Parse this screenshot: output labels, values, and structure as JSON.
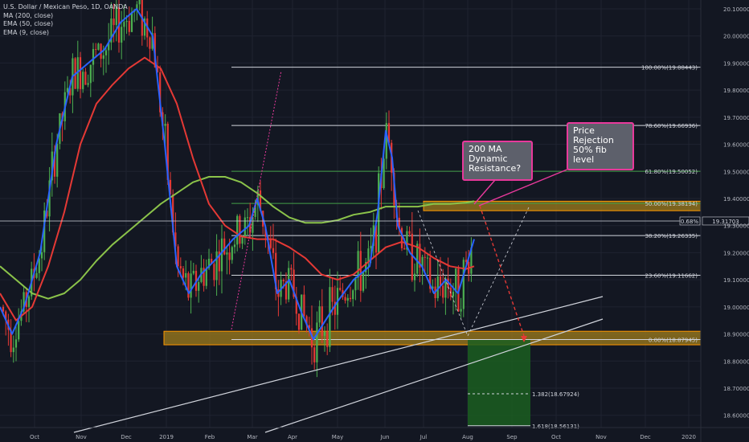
{
  "legend": {
    "title": "U.S. Dollar / Mexican Peso, 1D, OANDA",
    "ma200": "MA (200, close)",
    "ema50": "EMA (50, close)",
    "ema9": "EMA (9, close)"
  },
  "colors": {
    "background": "#131722",
    "bull": "#4caf50",
    "bear": "#e53935",
    "ma200": "#8bc34a",
    "ema50": "#e53935",
    "ema9": "#2962ff",
    "accent": "#e8399b",
    "zone": "#a07d1c"
  },
  "annotations": {
    "dynamic_resistance": "200 MA Dynamic Resistance?",
    "price_rejection": "Price Rejection 50% fib level"
  },
  "price_tag": {
    "change": "0.68%",
    "price": "19.31703"
  },
  "chart_data": {
    "type": "candlestick",
    "symbol": "USD/MXN",
    "ylim": [
      18.55,
      20.12
    ],
    "x_ticks": [
      "Oct",
      "Nov",
      "Dec",
      "2019",
      "Feb",
      "Mar",
      "Apr",
      "May",
      "Jun",
      "Jul",
      "Aug",
      "Sep",
      "Oct",
      "Nov",
      "Dec",
      "2020"
    ],
    "y_ticks": [
      "20.10000",
      "20.00000",
      "19.90000",
      "19.80000",
      "19.70000",
      "19.60000",
      "19.50000",
      "19.40000",
      "19.30000",
      "19.20000",
      "19.10000",
      "19.00000",
      "18.90000",
      "18.80000",
      "18.70000",
      "18.60000"
    ],
    "y_tick_values": [
      20.1,
      20.0,
      19.9,
      19.8,
      19.7,
      19.6,
      19.5,
      19.4,
      19.3,
      19.2,
      19.1,
      19.0,
      18.9,
      18.8,
      18.7,
      18.6
    ],
    "last_price": 19.31703,
    "fib_levels": [
      {
        "label": "100.00%(19.88443)",
        "value": 19.88443,
        "color": "#d1d4dc"
      },
      {
        "label": "78.60%(19.66936)",
        "value": 19.66936,
        "color": "#d1d4dc"
      },
      {
        "label": "61.80%(19.50052)",
        "value": 19.50052,
        "color": "#43a047"
      },
      {
        "label": "50.00%(19.38194)",
        "value": 19.38194,
        "color": "#43a047"
      },
      {
        "label": "38.20%(19.26335)",
        "value": 19.26335,
        "color": "#d1d4dc"
      },
      {
        "label": "23.60%(19.11662)",
        "value": 19.11662,
        "color": "#d1d4dc"
      },
      {
        "label": "0.00%(18.87945)",
        "value": 18.87945,
        "color": "#d1d4dc"
      }
    ],
    "target_levels": [
      {
        "label": "1.382(18.67924)",
        "value": 18.67924
      },
      {
        "label": "1.618(18.56131)",
        "value": 18.56131
      }
    ],
    "support_zone": [
      18.86,
      18.91
    ],
    "resistance_zone": [
      19.355,
      19.39
    ],
    "ma200": [
      [
        0,
        19.15
      ],
      [
        20,
        19.1
      ],
      [
        40,
        19.05
      ],
      [
        60,
        19.03
      ],
      [
        80,
        19.05
      ],
      [
        100,
        19.1
      ],
      [
        120,
        19.17
      ],
      [
        140,
        19.23
      ],
      [
        160,
        19.28
      ],
      [
        180,
        19.33
      ],
      [
        200,
        19.38
      ],
      [
        220,
        19.42
      ],
      [
        240,
        19.46
      ],
      [
        260,
        19.48
      ],
      [
        280,
        19.48
      ],
      [
        300,
        19.46
      ],
      [
        320,
        19.42
      ],
      [
        340,
        19.37
      ],
      [
        360,
        19.33
      ],
      [
        380,
        19.31
      ],
      [
        400,
        19.31
      ],
      [
        420,
        19.32
      ],
      [
        440,
        19.34
      ],
      [
        460,
        19.35
      ],
      [
        480,
        19.37
      ],
      [
        500,
        19.37
      ],
      [
        520,
        19.37
      ],
      [
        540,
        19.38
      ],
      [
        560,
        19.38
      ],
      [
        580,
        19.385
      ],
      [
        590,
        19.39
      ]
    ],
    "ema50": [
      [
        0,
        19.05
      ],
      [
        20,
        18.95
      ],
      [
        40,
        19.0
      ],
      [
        60,
        19.15
      ],
      [
        80,
        19.35
      ],
      [
        100,
        19.6
      ],
      [
        120,
        19.75
      ],
      [
        140,
        19.82
      ],
      [
        160,
        19.88
      ],
      [
        180,
        19.92
      ],
      [
        200,
        19.88
      ],
      [
        220,
        19.75
      ],
      [
        240,
        19.55
      ],
      [
        260,
        19.38
      ],
      [
        280,
        19.3
      ],
      [
        300,
        19.26
      ],
      [
        320,
        19.25
      ],
      [
        340,
        19.25
      ],
      [
        360,
        19.22
      ],
      [
        380,
        19.18
      ],
      [
        400,
        19.12
      ],
      [
        420,
        19.1
      ],
      [
        440,
        19.12
      ],
      [
        460,
        19.17
      ],
      [
        480,
        19.22
      ],
      [
        500,
        19.24
      ],
      [
        520,
        19.22
      ],
      [
        540,
        19.18
      ],
      [
        560,
        19.15
      ],
      [
        580,
        19.14
      ],
      [
        590,
        19.15
      ]
    ],
    "ema9": [
      [
        0,
        19.0
      ],
      [
        15,
        18.9
      ],
      [
        30,
        19.0
      ],
      [
        50,
        19.2
      ],
      [
        70,
        19.6
      ],
      [
        90,
        19.85
      ],
      [
        110,
        19.9
      ],
      [
        130,
        19.95
      ],
      [
        150,
        20.05
      ],
      [
        170,
        20.1
      ],
      [
        190,
        20.0
      ],
      [
        205,
        19.6
      ],
      [
        220,
        19.15
      ],
      [
        235,
        19.05
      ],
      [
        250,
        19.12
      ],
      [
        270,
        19.18
      ],
      [
        290,
        19.25
      ],
      [
        310,
        19.3
      ],
      [
        320,
        19.4
      ],
      [
        330,
        19.3
      ],
      [
        345,
        19.05
      ],
      [
        360,
        19.1
      ],
      [
        375,
        18.98
      ],
      [
        390,
        18.88
      ],
      [
        405,
        18.95
      ],
      [
        420,
        19.02
      ],
      [
        440,
        19.1
      ],
      [
        460,
        19.15
      ],
      [
        470,
        19.35
      ],
      [
        480,
        19.65
      ],
      [
        488,
        19.55
      ],
      [
        495,
        19.3
      ],
      [
        510,
        19.2
      ],
      [
        525,
        19.15
      ],
      [
        540,
        19.05
      ],
      [
        555,
        19.1
      ],
      [
        570,
        19.05
      ],
      [
        580,
        19.15
      ],
      [
        590,
        19.25
      ]
    ]
  }
}
